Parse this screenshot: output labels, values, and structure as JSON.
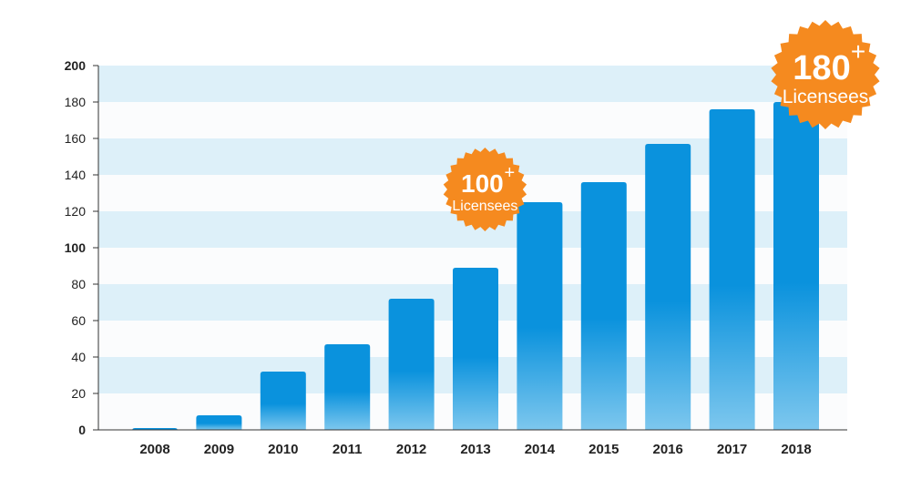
{
  "chart_data": {
    "type": "bar",
    "title": "",
    "xlabel": "",
    "ylabel": "",
    "categories": [
      "2008",
      "2009",
      "2010",
      "2011",
      "2012",
      "2013",
      "2014",
      "2015",
      "2016",
      "2017",
      "2018"
    ],
    "values": [
      1,
      8,
      32,
      47,
      72,
      89,
      125,
      136,
      157,
      176,
      180
    ],
    "ylim": [
      0,
      200
    ],
    "yticks": [
      "0",
      "20",
      "40",
      "60",
      "80",
      "100",
      "120",
      "140",
      "160",
      "180",
      "200"
    ],
    "grid": "alternating horizontal bands",
    "legend": "none",
    "colors": {
      "bar_top": "#0a92dd",
      "bar_bottom": "#7dc7ee",
      "band": "#ddf0f9",
      "badge": "#f58a1f",
      "axis": "#333333"
    },
    "annotations": [
      {
        "category": "2014",
        "value": 125,
        "number": "100",
        "plus": "+",
        "label": "Licensees",
        "size": "small"
      },
      {
        "category": "2018",
        "value": 180,
        "number": "180",
        "plus": "+",
        "label": "Licensees",
        "size": "large"
      }
    ]
  }
}
